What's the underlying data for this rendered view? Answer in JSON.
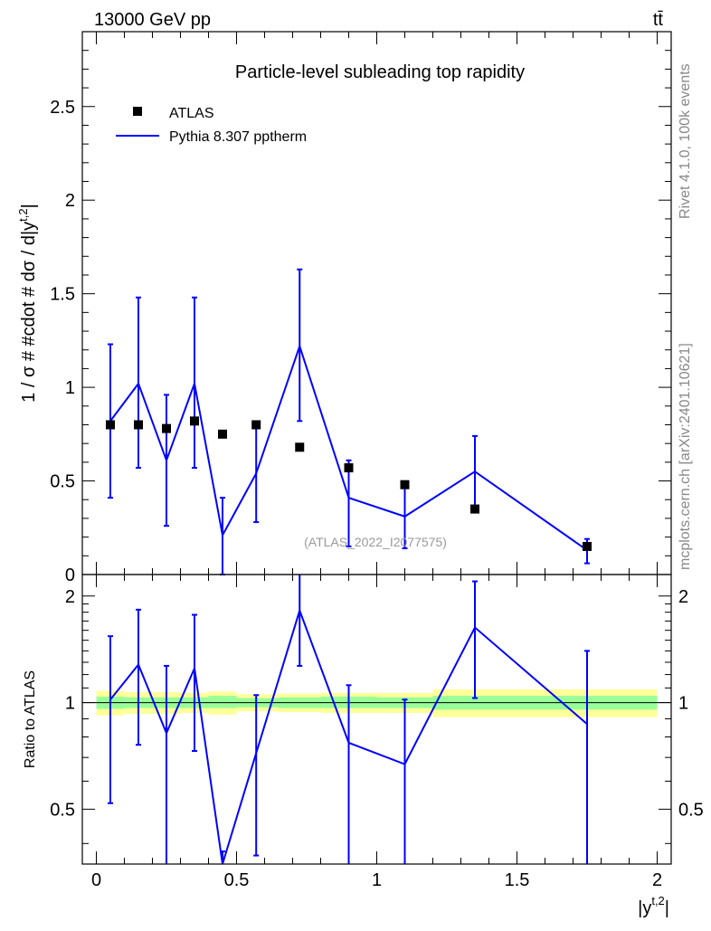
{
  "header": {
    "left": "13000 GeV pp",
    "right": "tt̄"
  },
  "side_labels": {
    "rivet": "Rivet 4.1.0,  100k events",
    "mcplots": "mcplots.cern.ch [arXiv:2401.10621]"
  },
  "chart_data": [
    {
      "type": "scatter",
      "title": "Particle-level subleading top rapidity",
      "watermark": "(ATLAS_2022_I2077575)",
      "xlabel": "|y^{t,2}|",
      "ylabel": "1 / σ # #cdot # dσ / d|y^{t,2}|",
      "xlim": [
        -0.05,
        2.05
      ],
      "ylim": [
        0,
        2.9
      ],
      "yticks": [
        0,
        0.5,
        1,
        1.5,
        2,
        2.5
      ],
      "ytick_labels": [
        "0",
        "0.5",
        "1",
        "1.5",
        "2",
        "2.5"
      ],
      "legend_position": "top-left",
      "series": [
        {
          "name": "ATLAS",
          "style": "markers",
          "color": "#000000",
          "x": [
            0.05,
            0.15,
            0.25,
            0.35,
            0.45,
            0.57,
            0.725,
            0.9,
            1.1,
            1.35,
            1.75
          ],
          "y": [
            0.8,
            0.8,
            0.78,
            0.82,
            0.75,
            0.8,
            0.68,
            0.57,
            0.48,
            0.35,
            0.15
          ]
        },
        {
          "name": "Pythia 8.307 pptherm",
          "style": "line",
          "color": "#0000ff",
          "x": [
            0.05,
            0.15,
            0.25,
            0.35,
            0.45,
            0.57,
            0.725,
            0.9,
            1.1,
            1.35,
            1.75
          ],
          "y": [
            0.82,
            1.02,
            0.61,
            1.02,
            0.21,
            0.54,
            1.22,
            0.41,
            0.31,
            0.55,
            0.13
          ],
          "err_low": [
            0.41,
            0.45,
            0.35,
            0.45,
            0.42,
            0.26,
            0.4,
            0.26,
            0.17,
            0.2,
            0.07
          ],
          "err_high": [
            0.41,
            0.46,
            0.35,
            0.46,
            0.2,
            0.25,
            0.41,
            0.2,
            0.16,
            0.19,
            0.06
          ]
        }
      ]
    },
    {
      "type": "line",
      "ylabel": "Ratio to ATLAS",
      "xlabel": "|y^{t,2}|",
      "xlim": [
        -0.05,
        2.05
      ],
      "ylim": [
        0.35,
        2.3
      ],
      "yticks": [
        0.5,
        1,
        2
      ],
      "ytick_labels": [
        "0.5",
        "1",
        "2"
      ],
      "xticks": [
        0,
        0.5,
        1,
        1.5,
        2
      ],
      "xtick_labels": [
        "0",
        "0.5",
        "1",
        "1.5",
        "2"
      ],
      "reference_line": 1,
      "bands": {
        "bin_edges": [
          0,
          0.1,
          0.2,
          0.3,
          0.4,
          0.5,
          0.65,
          0.8,
          1.0,
          1.2,
          1.5,
          2.0
        ],
        "inner_low": [
          0.96,
          0.965,
          0.965,
          0.965,
          0.965,
          0.97,
          0.965,
          0.965,
          0.965,
          0.955,
          0.955
        ],
        "inner_high": [
          1.04,
          1.035,
          1.035,
          1.035,
          1.045,
          1.03,
          1.035,
          1.04,
          1.035,
          1.045,
          1.045
        ],
        "outer_low": [
          0.92,
          0.93,
          0.93,
          0.935,
          0.925,
          0.945,
          0.94,
          0.935,
          0.935,
          0.91,
          0.91
        ],
        "outer_high": [
          1.08,
          1.07,
          1.07,
          1.065,
          1.075,
          1.055,
          1.06,
          1.065,
          1.065,
          1.09,
          1.09
        ],
        "inner_color": "#99ff99",
        "outer_color": "#ffff99"
      },
      "series": [
        {
          "name": "Pythia 8.307 pptherm / ATLAS",
          "color": "#0000ff",
          "x": [
            0.05,
            0.15,
            0.25,
            0.35,
            0.45,
            0.57,
            0.725,
            0.9,
            1.1,
            1.35,
            1.75
          ],
          "y": [
            1.02,
            1.28,
            0.82,
            1.25,
            0.28,
            0.72,
            1.82,
            0.77,
            0.67,
            1.63,
            0.87
          ],
          "err_low": [
            0.5,
            0.52,
            0.55,
            0.52,
            0.1,
            0.35,
            0.55,
            0.5,
            0.36,
            0.6,
            0.6
          ],
          "err_high": [
            0.52,
            0.55,
            0.45,
            0.52,
            0.1,
            0.33,
            0.48,
            0.35,
            0.35,
            0.57,
            0.53
          ]
        }
      ]
    }
  ]
}
